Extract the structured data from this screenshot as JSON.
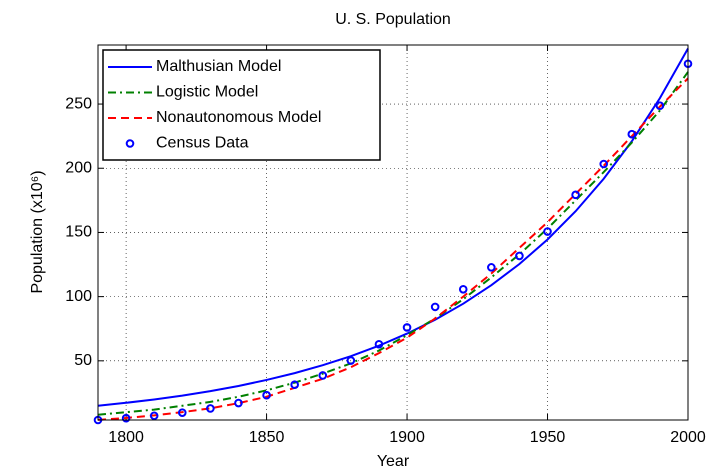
{
  "chart_data": {
    "type": "line",
    "title": "U. S. Population",
    "x_label": "Year",
    "y_label": "Population (x10⁶)",
    "x": [
      1790,
      1800,
      1810,
      1820,
      1830,
      1840,
      1850,
      1860,
      1870,
      1880,
      1890,
      1900,
      1910,
      1920,
      1930,
      1940,
      1950,
      1960,
      1970,
      1980,
      1990,
      2000
    ],
    "series": [
      {
        "name": "Malthusian Model",
        "color": "#0000ff",
        "style": "solid",
        "values": [
          15.0,
          17.3,
          19.9,
          22.9,
          26.4,
          30.4,
          35.1,
          40.4,
          46.6,
          53.6,
          61.8,
          71.2,
          82.0,
          94.5,
          108.9,
          125.4,
          144.5,
          166.5,
          191.8,
          221.0,
          254.6,
          293.3
        ]
      },
      {
        "name": "Logistic Model",
        "color": "#008000",
        "style": "dashdot",
        "values": [
          8,
          10,
          12,
          15,
          18,
          22,
          27,
          33,
          40,
          48,
          58,
          70,
          83,
          98,
          115,
          133,
          153,
          175,
          197,
          220,
          245,
          275
        ]
      },
      {
        "name": "Nonautonomous Model",
        "color": "#ff0000",
        "style": "dashed",
        "values": [
          4,
          5.5,
          7.5,
          10,
          13,
          17,
          22,
          29,
          36,
          45,
          56,
          68,
          83,
          100,
          118,
          138,
          158,
          180,
          202,
          225,
          248,
          270
        ]
      },
      {
        "name": "Census Data",
        "color": "#0000ff",
        "style": "markers",
        "values": [
          3.9,
          5.3,
          7.2,
          9.6,
          12.9,
          17.1,
          23.2,
          31.4,
          38.6,
          50.2,
          62.9,
          76.0,
          92.0,
          105.7,
          122.8,
          131.7,
          150.7,
          179.3,
          203.3,
          226.5,
          248.7,
          281.4
        ]
      }
    ],
    "xlim": [
      1790,
      2000
    ],
    "ylim": [
      3.9,
      296
    ],
    "xticks": [
      1800,
      1850,
      1900,
      1950,
      2000
    ],
    "yticks": [
      50,
      100,
      150,
      200,
      250
    ],
    "grid": true,
    "legend": "upper left"
  }
}
